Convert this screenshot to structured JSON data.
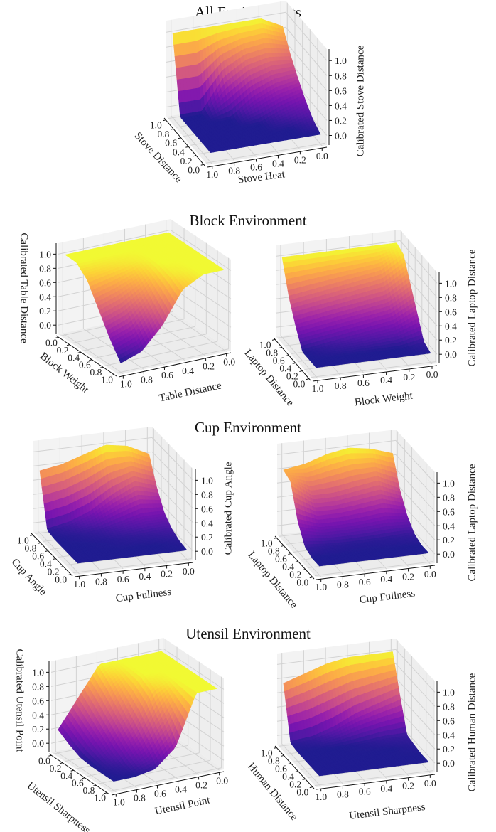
{
  "section_titles": [
    "All Environments",
    "Block Environment",
    "Cup Environment",
    "Utensil Environment"
  ],
  "chart_data": [
    {
      "type": "surface",
      "section": 0,
      "colormap": "plasma",
      "xlabel": "Stove Heat",
      "ylabel": "Stove Distance",
      "zlabel": "Calibrated Stove Distance",
      "x_ticks": [
        "0.0",
        "0.2",
        "0.4",
        "0.6",
        "0.8",
        "1.0"
      ],
      "y_ticks": [
        "0.0",
        "0.2",
        "0.4",
        "0.6",
        "0.8",
        "1.0"
      ],
      "z_ticks": [
        "0.0",
        "0.2",
        "0.4",
        "0.6",
        "0.8",
        "1.0"
      ],
      "x": [
        0,
        0.2,
        0.4,
        0.6,
        0.8,
        1.0
      ],
      "y": [
        0,
        0.2,
        0.4,
        0.6,
        0.8,
        1.0
      ],
      "z": [
        [
          0,
          0,
          0,
          0,
          0,
          0
        ],
        [
          0.08,
          0,
          0,
          0,
          0,
          0
        ],
        [
          0.22,
          0.12,
          0,
          0,
          0,
          0
        ],
        [
          0.4,
          0.35,
          0.22,
          0,
          0,
          0
        ],
        [
          0.6,
          0.65,
          0.6,
          0.42,
          0,
          0
        ],
        [
          0.85,
          1,
          1,
          1,
          1,
          1
        ]
      ],
      "grid": true
    },
    {
      "type": "surface",
      "section": 1,
      "colormap": "plasma",
      "xlabel": "Table Distance",
      "ylabel": "Block Weight",
      "zlabel": "Calibrated Table Distance",
      "x_ticks": [
        "0.0",
        "0.2",
        "0.4",
        "0.6",
        "0.8",
        "1.0"
      ],
      "y_ticks": [
        "0.0",
        "0.2",
        "0.4",
        "0.6",
        "0.8",
        "1.0"
      ],
      "z_ticks": [
        "0.0",
        "0.2",
        "0.4",
        "0.6",
        "0.8",
        "1.0"
      ],
      "x": [
        0,
        0.2,
        0.4,
        0.6,
        0.8,
        1.0
      ],
      "y": [
        0,
        0.2,
        0.4,
        0.6,
        0.8,
        1.0
      ],
      "z": [
        [
          1,
          1,
          1,
          1,
          1,
          1
        ],
        [
          1,
          1,
          1,
          1,
          1,
          1
        ],
        [
          1,
          1,
          1,
          0.95,
          0.9,
          0.85
        ],
        [
          1,
          1,
          1,
          0.8,
          0.65,
          0.55
        ],
        [
          1,
          1,
          0.95,
          0.6,
          0.35,
          0.25
        ],
        [
          1,
          1,
          0.85,
          0.4,
          0.1,
          0
        ]
      ],
      "grid": true
    },
    {
      "type": "surface",
      "section": 1,
      "colormap": "plasma",
      "xlabel": "Block Weight",
      "ylabel": "Laptop Distance",
      "zlabel": "Calibrated Laptop Distance",
      "x_ticks": [
        "0.0",
        "0.2",
        "0.4",
        "0.6",
        "0.8",
        "1.0"
      ],
      "y_ticks": [
        "0.0",
        "0.2",
        "0.4",
        "0.6",
        "0.8",
        "1.0"
      ],
      "z_ticks": [
        "0.0",
        "0.2",
        "0.4",
        "0.6",
        "0.8",
        "1.0"
      ],
      "x": [
        0,
        0.2,
        0.4,
        0.6,
        0.8,
        1.0
      ],
      "y": [
        0,
        0.2,
        0.4,
        0.6,
        0.8,
        1.0
      ],
      "z": [
        [
          0,
          0,
          0,
          0,
          0,
          0
        ],
        [
          0.05,
          0,
          0,
          0,
          0,
          0
        ],
        [
          0.35,
          0.2,
          0.15,
          0.1,
          0.05,
          0
        ],
        [
          0.65,
          0.45,
          0.4,
          0.35,
          0.3,
          0.25
        ],
        [
          0.95,
          0.75,
          0.7,
          0.65,
          0.6,
          0.55
        ],
        [
          1,
          1,
          1,
          1,
          1,
          1
        ]
      ],
      "grid": true
    },
    {
      "type": "surface",
      "section": 2,
      "colormap": "plasma",
      "xlabel": "Cup Fullness",
      "ylabel": "Cup Angle",
      "zlabel": "Calibrated Cup Angle",
      "x_ticks": [
        "0.0",
        "0.2",
        "0.4",
        "0.6",
        "0.8",
        "1.0"
      ],
      "y_ticks": [
        "0.0",
        "0.2",
        "0.4",
        "0.6",
        "0.8",
        "1.0"
      ],
      "z_ticks": [
        "0.0",
        "0.2",
        "0.4",
        "0.6",
        "0.8",
        "1.0"
      ],
      "x": [
        0,
        0.2,
        0.4,
        0.6,
        0.8,
        1.0
      ],
      "y": [
        0,
        0.2,
        0.4,
        0.6,
        0.8,
        1.0
      ],
      "z": [
        [
          0,
          0,
          0,
          0,
          0,
          0
        ],
        [
          0.02,
          0,
          0,
          0,
          0,
          0
        ],
        [
          0.08,
          0.05,
          0.03,
          0.01,
          0,
          0
        ],
        [
          0.2,
          0.2,
          0.12,
          0.05,
          0.02,
          0
        ],
        [
          0.45,
          0.55,
          0.4,
          0.2,
          0.08,
          0.02
        ],
        [
          0.8,
          0.95,
          1,
          0.9,
          0.8,
          0.75
        ]
      ],
      "grid": true
    },
    {
      "type": "surface",
      "section": 2,
      "colormap": "plasma",
      "xlabel": "Cup Fullness",
      "ylabel": "Laptop Distance",
      "zlabel": "Calibrated Laptop Distance",
      "x_ticks": [
        "0.0",
        "0.2",
        "0.4",
        "0.6",
        "0.8",
        "1.0"
      ],
      "y_ticks": [
        "0.0",
        "0.2",
        "0.4",
        "0.6",
        "0.8",
        "1.0"
      ],
      "z_ticks": [
        "0.0",
        "0.2",
        "0.4",
        "0.6",
        "0.8",
        "1.0"
      ],
      "x": [
        0,
        0.2,
        0.4,
        0.6,
        0.8,
        1.0
      ],
      "y": [
        0,
        0.2,
        0.4,
        0.6,
        0.8,
        1.0
      ],
      "z": [
        [
          0,
          0,
          0,
          0,
          0,
          0
        ],
        [
          0,
          0,
          0,
          0,
          0,
          0
        ],
        [
          0.05,
          0.03,
          0.02,
          0.02,
          0.03,
          0.05
        ],
        [
          0.2,
          0.25,
          0.22,
          0.2,
          0.2,
          0.3
        ],
        [
          0.45,
          0.6,
          0.55,
          0.5,
          0.5,
          0.75
        ],
        [
          0.85,
          0.95,
          1,
          0.95,
          0.85,
          0.8
        ]
      ],
      "grid": true
    },
    {
      "type": "surface",
      "section": 3,
      "colormap": "plasma",
      "xlabel": "Utensil Point",
      "ylabel": "Utensil Sharpness",
      "zlabel": "Calibrated Utensil Point",
      "x_ticks": [
        "0.0",
        "0.2",
        "0.4",
        "0.6",
        "0.8",
        "1.0"
      ],
      "y_ticks": [
        "0.0",
        "0.2",
        "0.4",
        "0.6",
        "0.8",
        "1.0"
      ],
      "z_ticks": [
        "0.0",
        "0.2",
        "0.4",
        "0.6",
        "0.8",
        "1.0"
      ],
      "x": [
        0,
        0.2,
        0.4,
        0.6,
        0.8,
        1.0
      ],
      "y": [
        0,
        0.2,
        0.4,
        0.6,
        0.8,
        1.0
      ],
      "z": [
        [
          1,
          1,
          1,
          1,
          0.6,
          0.2
        ],
        [
          1,
          1,
          1,
          0.85,
          0.45,
          0.1
        ],
        [
          1,
          1,
          1,
          0.65,
          0.3,
          0.02
        ],
        [
          1,
          1,
          0.9,
          0.45,
          0.15,
          0
        ],
        [
          1,
          1,
          0.6,
          0.25,
          0.05,
          0
        ],
        [
          1,
          1,
          0.3,
          0.05,
          0,
          0
        ]
      ],
      "grid": true
    },
    {
      "type": "surface",
      "section": 3,
      "colormap": "plasma",
      "xlabel": "Utensil Sharpness",
      "ylabel": "Human Distance",
      "zlabel": "Calibrated Human Distance",
      "x_ticks": [
        "0.0",
        "0.2",
        "0.4",
        "0.6",
        "0.8",
        "1.0"
      ],
      "y_ticks": [
        "0.0",
        "0.2",
        "0.4",
        "0.6",
        "0.8",
        "1.0"
      ],
      "z_ticks": [
        "0.0",
        "0.2",
        "0.4",
        "0.6",
        "0.8",
        "1.0"
      ],
      "x": [
        0,
        0.2,
        0.4,
        0.6,
        0.8,
        1.0
      ],
      "y": [
        0,
        0.2,
        0.4,
        0.6,
        0.8,
        1.0
      ],
      "z": [
        [
          0,
          0,
          0,
          0,
          0,
          0
        ],
        [
          0,
          0,
          0,
          0,
          0,
          0
        ],
        [
          0.02,
          0,
          0,
          0,
          0,
          0
        ],
        [
          0.05,
          0.05,
          0.02,
          0,
          0,
          0
        ],
        [
          0.5,
          0.4,
          0.3,
          0.15,
          0.05,
          0.02
        ],
        [
          1,
          1,
          1,
          0.95,
          0.85,
          0.75
        ]
      ],
      "grid": true
    }
  ]
}
